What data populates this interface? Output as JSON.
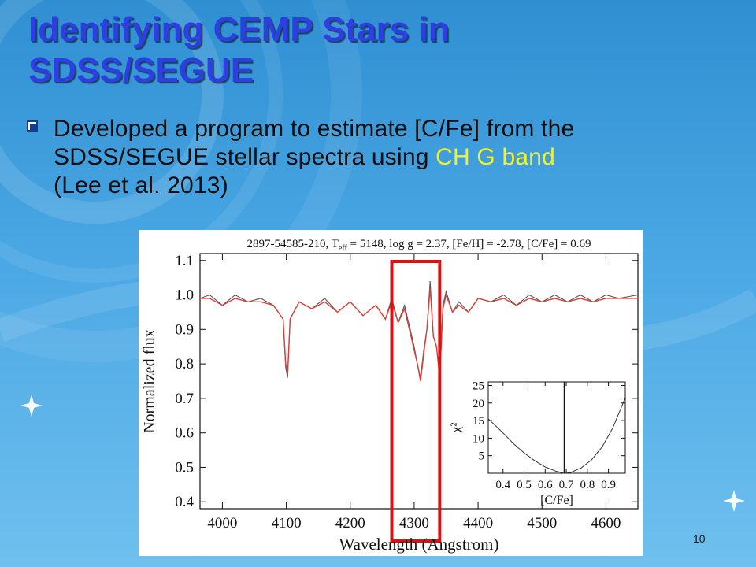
{
  "slide": {
    "title_line1": "Identifying CEMP Stars in",
    "title_line2": "SDSS/SEGUE",
    "bullet_pre": "Developed a program to estimate [C/Fe] from the SDSS/SEGUE stellar spectra using",
    "bullet_highlight": "CH G band",
    "bullet_post": "(Lee et al. 2013)",
    "bullet_icon": "square-checkbox-icon",
    "page_number": "10",
    "colors": {
      "title": "#2d3fe0",
      "highlight": "#f4f02a",
      "box": "#e01010",
      "model": "#d9403a"
    }
  },
  "chart_data": [
    {
      "type": "line",
      "title": "2897-54585-210, T eff = 5148, log g = 2.37, [Fe/H] = -2.78, [C/Fe] = 0.69",
      "title_parts": {
        "obj": "2897-54585-210, T",
        "sub": "eff",
        "rest": " = 5148, log g = 2.37, [Fe/H] = -2.78, [C/Fe] = 0.69"
      },
      "xlabel": "Wavelength (Angstrom)",
      "ylabel": "Normalized flux",
      "xlim": [
        3965,
        4650
      ],
      "ylim": [
        0.38,
        1.12
      ],
      "xticks": [
        "4000",
        "4100",
        "4200",
        "4300",
        "4400",
        "4500",
        "4600"
      ],
      "xtick_values": [
        4000,
        4100,
        4200,
        4300,
        4400,
        4500,
        4600
      ],
      "yticks": [
        "0.4",
        "0.5",
        "0.6",
        "0.7",
        "0.8",
        "0.9",
        "1.0",
        "1.1"
      ],
      "ytick_values": [
        0.4,
        0.5,
        0.6,
        0.7,
        0.8,
        0.9,
        1.0,
        1.1
      ],
      "series": [
        {
          "color": "#555555",
          "points": [
            [
              3965,
              0.99
            ],
            [
              3980,
              1.0
            ],
            [
              4000,
              0.97
            ],
            [
              4020,
              1.0
            ],
            [
              4040,
              0.98
            ],
            [
              4060,
              0.99
            ],
            [
              4080,
              0.97
            ],
            [
              4095,
              0.93
            ],
            [
              4099,
              0.79
            ],
            [
              4102,
              0.76
            ],
            [
              4106,
              0.93
            ],
            [
              4120,
              0.98
            ],
            [
              4140,
              0.96
            ],
            [
              4160,
              0.99
            ],
            [
              4180,
              0.95
            ],
            [
              4200,
              0.98
            ],
            [
              4220,
              0.94
            ],
            [
              4240,
              0.97
            ],
            [
              4255,
              0.93
            ],
            [
              4265,
              0.99
            ],
            [
              4275,
              0.92
            ],
            [
              4285,
              0.97
            ],
            [
              4295,
              0.89
            ],
            [
              4300,
              0.85
            ],
            [
              4305,
              0.8
            ],
            [
              4310,
              0.76
            ],
            [
              4315,
              0.84
            ],
            [
              4320,
              0.9
            ],
            [
              4325,
              1.04
            ],
            [
              4330,
              0.88
            ],
            [
              4335,
              0.85
            ],
            [
              4340,
              0.76
            ],
            [
              4345,
              0.97
            ],
            [
              4350,
              1.01
            ],
            [
              4360,
              0.95
            ],
            [
              4370,
              0.98
            ],
            [
              4385,
              0.95
            ],
            [
              4400,
              0.99
            ],
            [
              4420,
              0.98
            ],
            [
              4440,
              1.0
            ],
            [
              4460,
              0.97
            ],
            [
              4480,
              1.0
            ],
            [
              4500,
              0.98
            ],
            [
              4520,
              1.0
            ],
            [
              4540,
              0.98
            ],
            [
              4560,
              1.0
            ],
            [
              4580,
              0.98
            ],
            [
              4600,
              1.0
            ],
            [
              4620,
              0.99
            ],
            [
              4650,
              1.0
            ]
          ]
        },
        {
          "color": "#d9403a",
          "points": [
            [
              3965,
              0.99
            ],
            [
              3980,
              0.99
            ],
            [
              4000,
              0.97
            ],
            [
              4020,
              0.99
            ],
            [
              4040,
              0.98
            ],
            [
              4060,
              0.98
            ],
            [
              4080,
              0.97
            ],
            [
              4095,
              0.93
            ],
            [
              4099,
              0.8
            ],
            [
              4102,
              0.77
            ],
            [
              4106,
              0.93
            ],
            [
              4120,
              0.98
            ],
            [
              4140,
              0.96
            ],
            [
              4160,
              0.98
            ],
            [
              4180,
              0.95
            ],
            [
              4200,
              0.98
            ],
            [
              4220,
              0.94
            ],
            [
              4240,
              0.97
            ],
            [
              4255,
              0.93
            ],
            [
              4265,
              0.98
            ],
            [
              4275,
              0.92
            ],
            [
              4285,
              0.96
            ],
            [
              4295,
              0.88
            ],
            [
              4300,
              0.84
            ],
            [
              4305,
              0.8
            ],
            [
              4310,
              0.75
            ],
            [
              4315,
              0.83
            ],
            [
              4320,
              0.9
            ],
            [
              4325,
              1.02
            ],
            [
              4330,
              0.88
            ],
            [
              4335,
              0.85
            ],
            [
              4340,
              0.76
            ],
            [
              4345,
              0.96
            ],
            [
              4350,
              1.0
            ],
            [
              4360,
              0.95
            ],
            [
              4370,
              0.97
            ],
            [
              4385,
              0.95
            ],
            [
              4400,
              0.99
            ],
            [
              4420,
              0.98
            ],
            [
              4440,
              0.99
            ],
            [
              4460,
              0.97
            ],
            [
              4480,
              0.99
            ],
            [
              4500,
              0.98
            ],
            [
              4520,
              0.99
            ],
            [
              4540,
              0.98
            ],
            [
              4560,
              0.99
            ],
            [
              4580,
              0.98
            ],
            [
              4600,
              0.99
            ],
            [
              4620,
              0.99
            ],
            [
              4650,
              0.99
            ]
          ]
        }
      ],
      "highlight_region": {
        "x": [
          4265,
          4340
        ],
        "color": "#e01010"
      }
    },
    {
      "type": "line",
      "xlabel": "[C/Fe]",
      "ylabel": "χ²",
      "xlim": [
        0.33,
        0.98
      ],
      "ylim": [
        0,
        26
      ],
      "xticks": [
        "0.4",
        "0.5",
        "0.6",
        "0.7",
        "0.8",
        "0.9"
      ],
      "xtick_values": [
        0.4,
        0.5,
        0.6,
        0.7,
        0.8,
        0.9
      ],
      "yticks": [
        "5",
        "10",
        "15",
        "20",
        "25"
      ],
      "ytick_values": [
        5,
        10,
        15,
        20,
        25
      ],
      "series": [
        {
          "color": "#333333",
          "points": [
            [
              0.33,
              15.5
            ],
            [
              0.4,
              11.5
            ],
            [
              0.45,
              8.4
            ],
            [
              0.5,
              5.8
            ],
            [
              0.55,
              3.6
            ],
            [
              0.6,
              1.8
            ],
            [
              0.65,
              0.6
            ],
            [
              0.69,
              0.0
            ],
            [
              0.72,
              0.2
            ],
            [
              0.77,
              1.5
            ],
            [
              0.82,
              3.8
            ],
            [
              0.87,
              7.5
            ],
            [
              0.92,
              12.8
            ],
            [
              0.98,
              21.5
            ]
          ]
        }
      ],
      "marker_x": 0.69
    }
  ]
}
